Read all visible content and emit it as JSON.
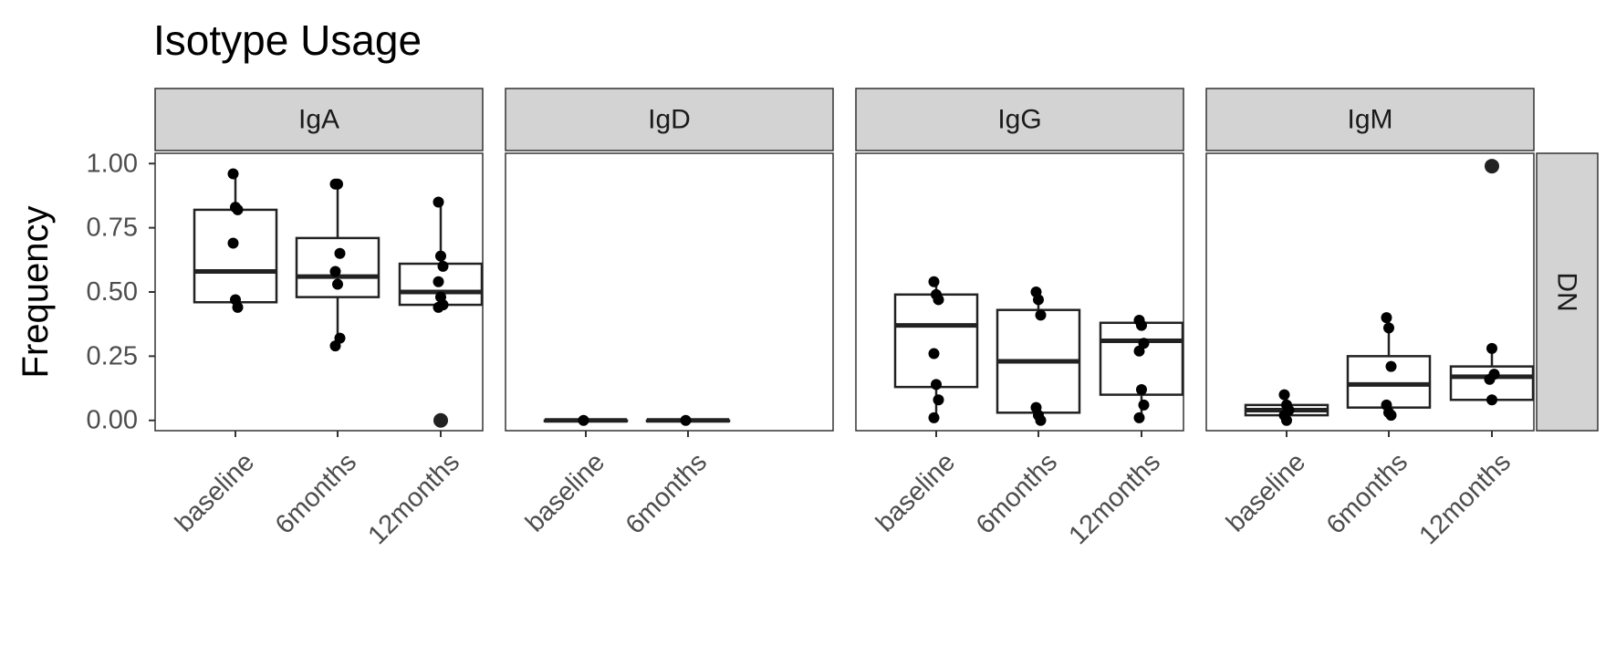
{
  "chart_data": {
    "type": "box",
    "title": "Isotype Usage",
    "ylabel": "Frequency",
    "xlabel": "",
    "ylim": [
      -0.04,
      1.04
    ],
    "yticks": [
      "0.00",
      "0.25",
      "0.50",
      "0.75",
      "1.00"
    ],
    "row_strip": "DN",
    "grid": false,
    "colors": {
      "strip_fill": "#d3d3d3",
      "frame": "#333333",
      "box": "#222222",
      "point": "#000000"
    },
    "panels": [
      {
        "facet": "IgA",
        "categories": [
          "baseline",
          "6months",
          "12months"
        ],
        "boxes": [
          {
            "min": 0.44,
            "q1": 0.46,
            "median": 0.58,
            "q3": 0.82,
            "max": 0.96,
            "outliers": []
          },
          {
            "min": 0.29,
            "q1": 0.48,
            "median": 0.56,
            "q3": 0.71,
            "max": 0.92,
            "outliers": []
          },
          {
            "min": 0.44,
            "q1": 0.45,
            "median": 0.5,
            "q3": 0.61,
            "max": 0.85,
            "outliers": [
              0.0
            ]
          }
        ],
        "points": [
          [
            0.96,
            0.83,
            0.82,
            0.69,
            0.47,
            0.44
          ],
          [
            0.92,
            0.92,
            0.65,
            0.58,
            0.53,
            0.32,
            0.29
          ],
          [
            0.85,
            0.64,
            0.6,
            0.54,
            0.48,
            0.45,
            0.44,
            0.0
          ]
        ]
      },
      {
        "facet": "IgD",
        "categories": [
          "baseline",
          "6months"
        ],
        "boxes": [
          {
            "min": 0.0,
            "q1": 0.0,
            "median": 0.0,
            "q3": 0.0,
            "max": 0.0,
            "outliers": []
          },
          {
            "min": 0.0,
            "q1": 0.0,
            "median": 0.0,
            "q3": 0.0,
            "max": 0.0,
            "outliers": []
          }
        ],
        "points": [
          [
            0.0
          ],
          [
            0.0
          ]
        ]
      },
      {
        "facet": "IgG",
        "categories": [
          "baseline",
          "6months",
          "12months"
        ],
        "boxes": [
          {
            "min": 0.01,
            "q1": 0.13,
            "median": 0.37,
            "q3": 0.49,
            "max": 0.54,
            "outliers": []
          },
          {
            "min": 0.0,
            "q1": 0.03,
            "median": 0.23,
            "q3": 0.43,
            "max": 0.5,
            "outliers": []
          },
          {
            "min": 0.01,
            "q1": 0.1,
            "median": 0.31,
            "q3": 0.38,
            "max": 0.39,
            "outliers": []
          }
        ],
        "points": [
          [
            0.54,
            0.49,
            0.47,
            0.26,
            0.14,
            0.08,
            0.01
          ],
          [
            0.5,
            0.47,
            0.41,
            0.05,
            0.02,
            0.0
          ],
          [
            0.39,
            0.37,
            0.3,
            0.27,
            0.12,
            0.06,
            0.01
          ]
        ]
      },
      {
        "facet": "IgM",
        "categories": [
          "baseline",
          "6months",
          "12months"
        ],
        "boxes": [
          {
            "min": 0.0,
            "q1": 0.02,
            "median": 0.04,
            "q3": 0.06,
            "max": 0.1,
            "outliers": []
          },
          {
            "min": 0.02,
            "q1": 0.05,
            "median": 0.14,
            "q3": 0.25,
            "max": 0.4,
            "outliers": []
          },
          {
            "min": 0.08,
            "q1": 0.08,
            "median": 0.17,
            "q3": 0.21,
            "max": 0.28,
            "outliers": [
              0.99
            ]
          }
        ],
        "points": [
          [
            0.1,
            0.06,
            0.04,
            0.02,
            0.0
          ],
          [
            0.4,
            0.36,
            0.21,
            0.06,
            0.03,
            0.02
          ],
          [
            0.99,
            0.28,
            0.18,
            0.16,
            0.08
          ]
        ]
      }
    ]
  }
}
